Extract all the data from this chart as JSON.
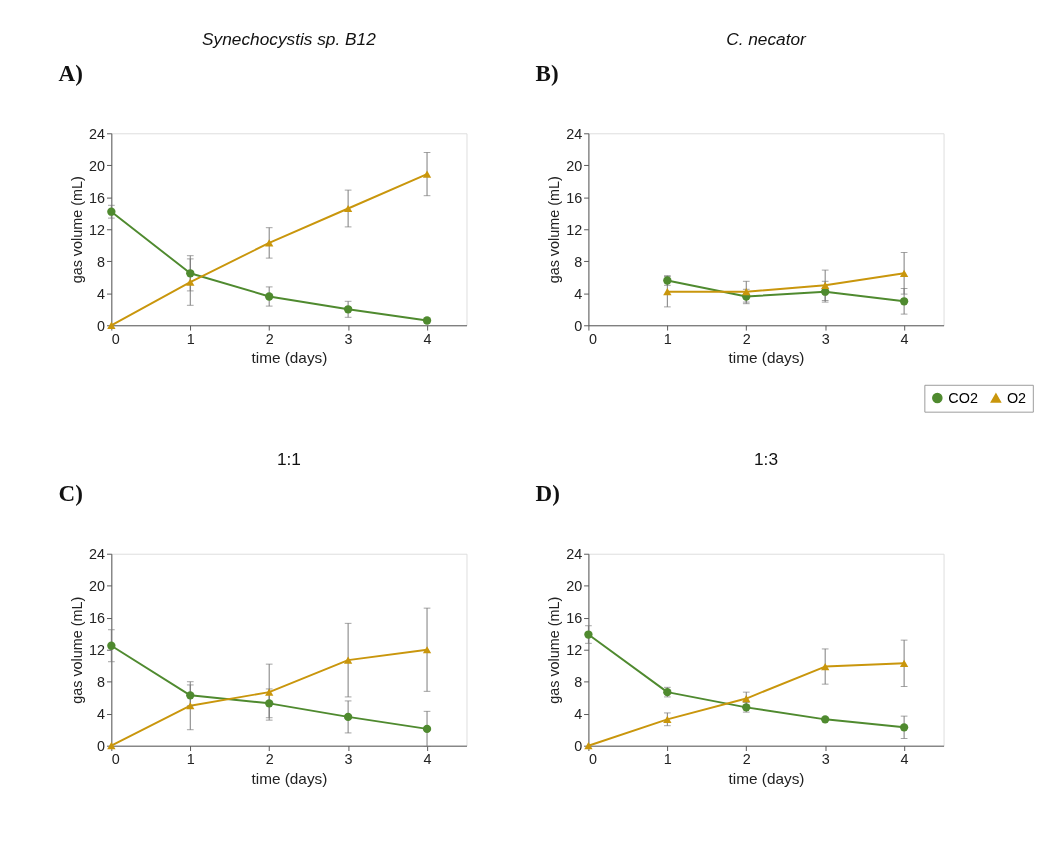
{
  "chart_data": [
    {
      "type": "line",
      "title": "Synechocystis sp. B12",
      "annotations": [
        "A)"
      ],
      "xlabel": "time (days)",
      "ylabel": "gas volume (mL)",
      "xlim": [
        0,
        4.5
      ],
      "xticks": [
        0,
        1,
        2,
        3,
        4
      ],
      "ylim": [
        0,
        24
      ],
      "yticks": [
        0,
        4,
        8,
        12,
        16,
        20,
        24
      ],
      "grid": false,
      "legend": false,
      "series": [
        {
          "color": "#4f8a2f",
          "marker": "circle",
          "x": [
            0,
            1,
            2,
            3,
            4
          ],
          "values": [
            14.2,
            6.5,
            3.6,
            2.0,
            0.6
          ],
          "errors": [
            0.8,
            2.2,
            1.2,
            1.0,
            0.3
          ]
        },
        {
          "color": "#c9960c",
          "marker": "triangle",
          "x": [
            0,
            1,
            2,
            3,
            4
          ],
          "values": [
            0,
            5.4,
            10.3,
            14.6,
            18.9
          ],
          "errors": [
            null,
            2.9,
            1.9,
            2.3,
            2.7
          ]
        }
      ]
    },
    {
      "type": "line",
      "title": "C. necator",
      "annotations": [
        "B)"
      ],
      "xlabel": "time (days)",
      "ylabel": "gas volume (mL)",
      "xlim": [
        0,
        4.5
      ],
      "xticks": [
        0,
        1,
        2,
        3,
        4
      ],
      "ylim": [
        0,
        24
      ],
      "yticks": [
        0,
        4,
        8,
        12,
        16,
        20,
        24
      ],
      "grid": false,
      "legend": "bottom right",
      "series": [
        {
          "name": "CO2",
          "color": "#4f8a2f",
          "marker": "circle",
          "x": [
            1,
            2,
            3,
            4
          ],
          "values": [
            5.6,
            3.6,
            4.2,
            3.0
          ],
          "errors": [
            0.6,
            0.9,
            1.3,
            1.6
          ]
        },
        {
          "name": "O2",
          "color": "#c9960c",
          "marker": "triangle",
          "x": [
            1,
            2,
            3,
            4
          ],
          "values": [
            4.2,
            4.2,
            5.0,
            6.5
          ],
          "errors": [
            1.9,
            1.3,
            1.9,
            2.6
          ]
        }
      ]
    },
    {
      "type": "line",
      "title": "1:1",
      "annotations": [
        "C)"
      ],
      "xlabel": "time (days)",
      "ylabel": "gas volume (mL)",
      "xlim": [
        0,
        4.5
      ],
      "xticks": [
        0,
        1,
        2,
        3,
        4
      ],
      "ylim": [
        0,
        24
      ],
      "yticks": [
        0,
        4,
        8,
        12,
        16,
        20,
        24
      ],
      "grid": false,
      "legend": false,
      "series": [
        {
          "color": "#4f8a2f",
          "marker": "circle",
          "x": [
            0,
            1,
            2,
            3,
            4
          ],
          "values": [
            12.5,
            6.3,
            5.3,
            3.6,
            2.1
          ],
          "errors": [
            2.0,
            1.3,
            1.8,
            2.0,
            2.2
          ]
        },
        {
          "color": "#c9960c",
          "marker": "triangle",
          "x": [
            0,
            1,
            2,
            3,
            4
          ],
          "values": [
            0,
            5.0,
            6.7,
            10.7,
            12.0
          ],
          "errors": [
            null,
            3.0,
            3.5,
            4.6,
            5.2
          ]
        }
      ]
    },
    {
      "type": "line",
      "title": "1:3",
      "annotations": [
        "D)"
      ],
      "xlabel": "time (days)",
      "ylabel": "gas volume (mL)",
      "xlim": [
        0,
        4.5
      ],
      "xticks": [
        0,
        1,
        2,
        3,
        4
      ],
      "ylim": [
        0,
        24
      ],
      "yticks": [
        0,
        4,
        8,
        12,
        16,
        20,
        24
      ],
      "grid": false,
      "legend": false,
      "series": [
        {
          "color": "#4f8a2f",
          "marker": "circle",
          "x": [
            0,
            1,
            2,
            3,
            4
          ],
          "values": [
            13.9,
            6.7,
            4.8,
            3.3,
            2.3
          ],
          "errors": [
            1.1,
            0.6,
            0.6,
            null,
            1.4
          ]
        },
        {
          "color": "#c9960c",
          "marker": "triangle",
          "x": [
            0,
            1,
            2,
            3,
            4
          ],
          "values": [
            0,
            3.3,
            5.9,
            9.9,
            10.3
          ],
          "errors": [
            null,
            0.8,
            0.8,
            2.2,
            2.9
          ]
        }
      ]
    }
  ]
}
